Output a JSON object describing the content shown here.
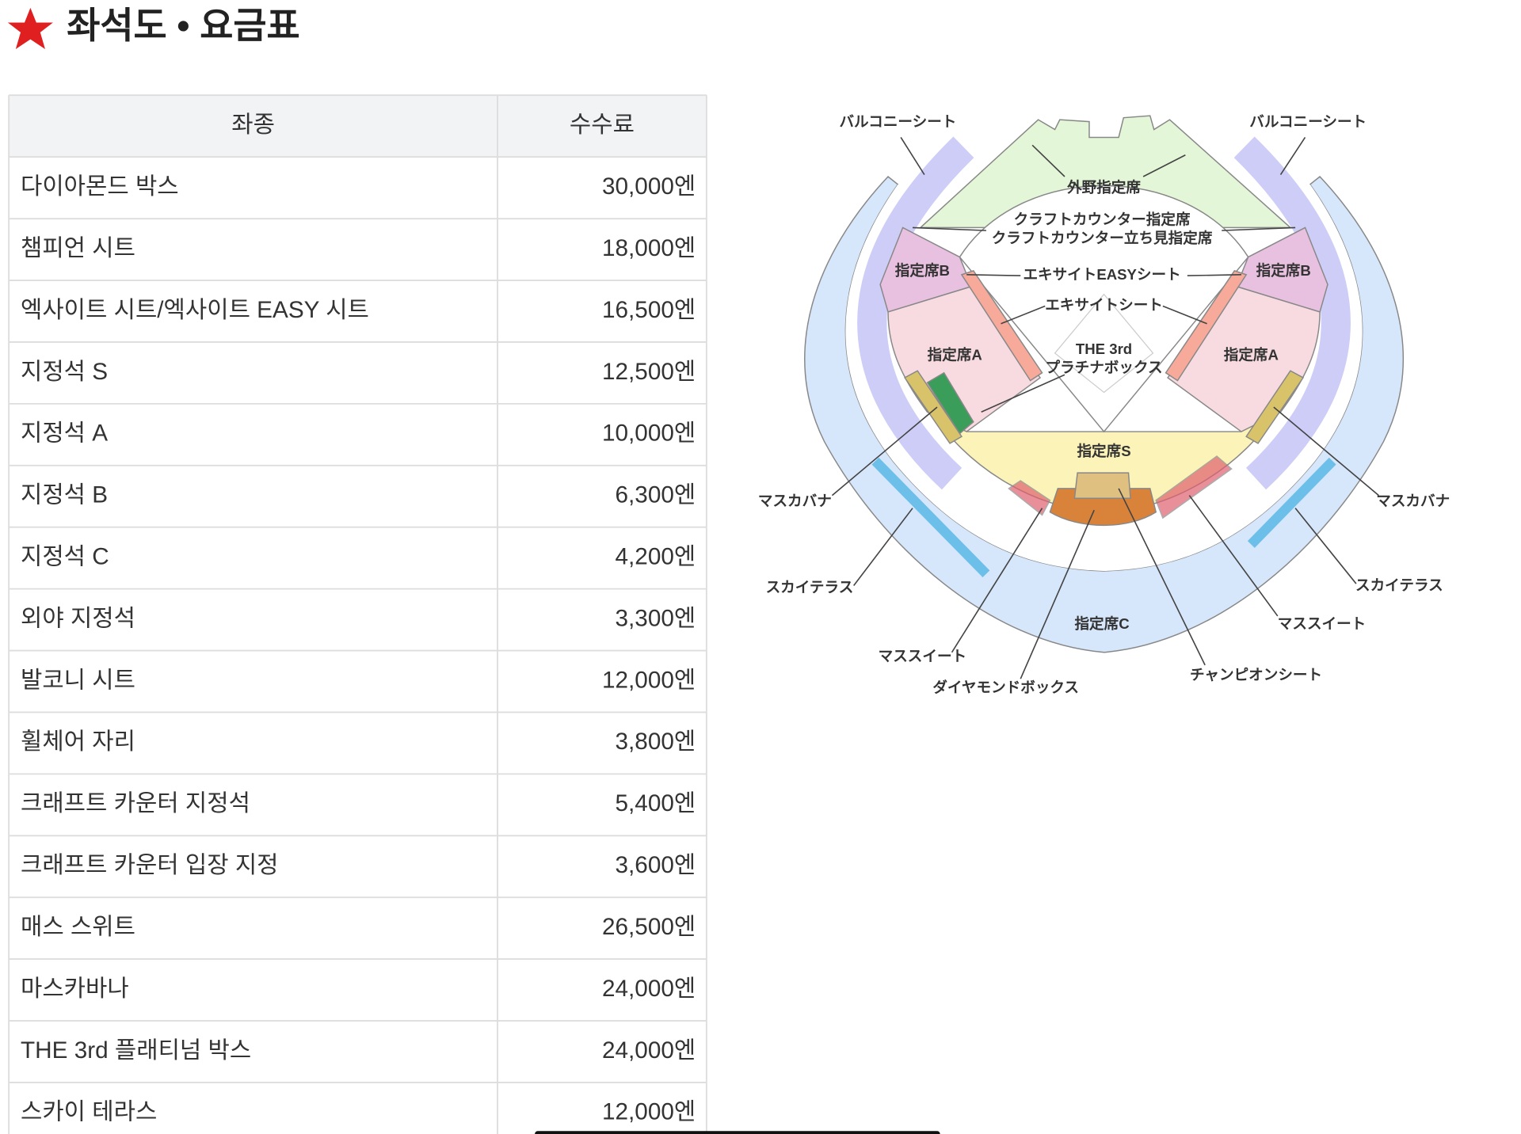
{
  "header": {
    "title": "좌석도 • 요금표"
  },
  "table": {
    "columns": [
      "좌종",
      "수수료"
    ],
    "rows": [
      [
        "다이아몬드 박스",
        "30,000엔"
      ],
      [
        "챔피언 시트",
        "18,000엔"
      ],
      [
        "엑사이트 시트/엑사이트 EASY 시트",
        "16,500엔"
      ],
      [
        "지정석 S",
        "12,500엔"
      ],
      [
        "지정석 A",
        "10,000엔"
      ],
      [
        "지정석 B",
        "6,300엔"
      ],
      [
        "지정석 C",
        "4,200엔"
      ],
      [
        "외야 지정석",
        "3,300엔"
      ],
      [
        "발코니 시트",
        "12,000엔"
      ],
      [
        "휠체어 자리",
        "3,800엔"
      ],
      [
        "크래프트 카운터 지정석",
        "5,400엔"
      ],
      [
        "크래프트 카운터 입장 지정",
        "3,600엔"
      ],
      [
        "매스 스위트",
        "26,500엔"
      ],
      [
        "마스카바나",
        "24,000엔"
      ],
      [
        "THE 3rd 플래티넘 박스",
        "24,000엔"
      ],
      [
        "스카이 테라스",
        "12,000엔"
      ]
    ]
  },
  "diagram": {
    "labels": [
      "バルコニーシート",
      "バルコニーシート",
      "外野指定席",
      "クラフトカウンター指定席",
      "クラフトカウンター立ち見指定席",
      "指定席B",
      "指定席B",
      "エキサイトEASYシート",
      "エキサイトシート",
      "THE 3rd",
      "プラチナボックス",
      "指定席A",
      "指定席A",
      "指定席S",
      "マスカバナ",
      "マスカバナ",
      "スカイテラス",
      "スカイテラス",
      "指定席C",
      "マススイート",
      "マススイート",
      "ダイヤモンドボックス",
      "チャンピオンシート"
    ]
  }
}
